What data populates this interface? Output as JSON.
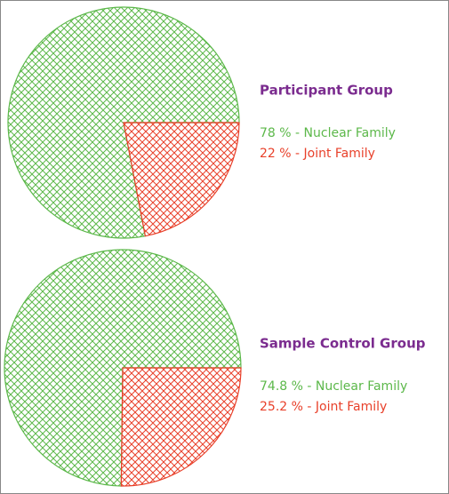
{
  "chart_data": [
    {
      "type": "pie",
      "title": "Participant Group",
      "values": [
        78,
        22
      ],
      "value_labels": [
        "78 % - Nuclear Family",
        "22 % - Joint Family"
      ],
      "colors": [
        "#5cb84a",
        "#e8402a"
      ]
    },
    {
      "type": "pie",
      "title": "Sample Control Group",
      "values": [
        74.8,
        25.2
      ],
      "value_labels": [
        "74.8 % - Nuclear Family",
        "25.2 % - Joint Family"
      ],
      "colors": [
        "#5cb84a",
        "#e8402a"
      ]
    }
  ]
}
